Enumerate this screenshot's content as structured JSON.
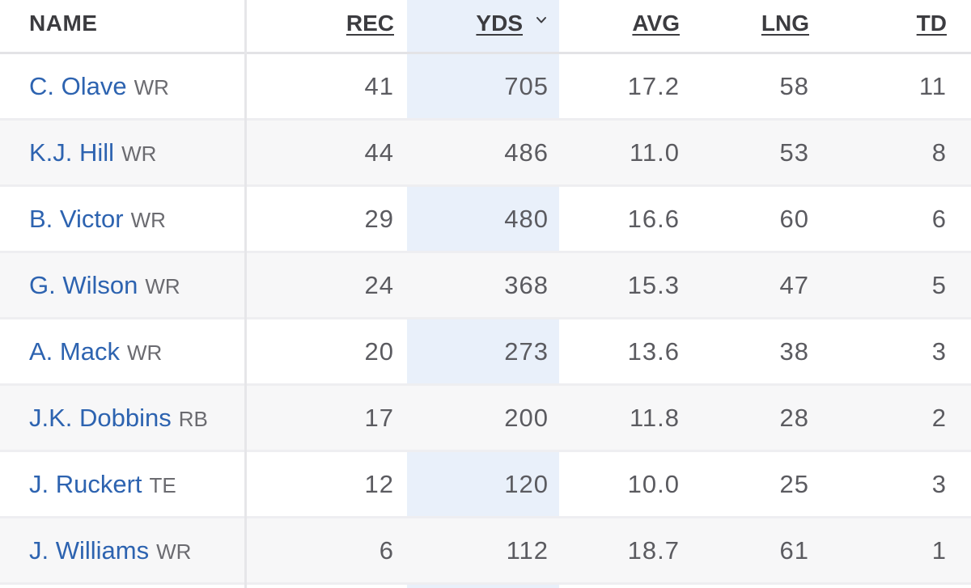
{
  "columns": {
    "name": "NAME",
    "rec": "REC",
    "yds": "YDS",
    "avg": "AVG",
    "lng": "LNG",
    "td": "TD"
  },
  "sort": {
    "column": "YDS",
    "direction": "descending",
    "icon": "chevron-down-icon"
  },
  "colors": {
    "link": "#2d63b0",
    "sorted_column_bg": "#e9f0fa",
    "row_alt_bg": "#f7f7f8"
  },
  "players": [
    {
      "name": "C. Olave",
      "pos": "WR",
      "rec": "41",
      "yds": "705",
      "avg": "17.2",
      "lng": "58",
      "td": "11"
    },
    {
      "name": "K.J. Hill",
      "pos": "WR",
      "rec": "44",
      "yds": "486",
      "avg": "11.0",
      "lng": "53",
      "td": "8"
    },
    {
      "name": "B. Victor",
      "pos": "WR",
      "rec": "29",
      "yds": "480",
      "avg": "16.6",
      "lng": "60",
      "td": "6"
    },
    {
      "name": "G. Wilson",
      "pos": "WR",
      "rec": "24",
      "yds": "368",
      "avg": "15.3",
      "lng": "47",
      "td": "5"
    },
    {
      "name": "A. Mack",
      "pos": "WR",
      "rec": "20",
      "yds": "273",
      "avg": "13.6",
      "lng": "38",
      "td": "3"
    },
    {
      "name": "J.K. Dobbins",
      "pos": "RB",
      "rec": "17",
      "yds": "200",
      "avg": "11.8",
      "lng": "28",
      "td": "2"
    },
    {
      "name": "J. Ruckert",
      "pos": "TE",
      "rec": "12",
      "yds": "120",
      "avg": "10.0",
      "lng": "25",
      "td": "3"
    },
    {
      "name": "J. Williams",
      "pos": "WR",
      "rec": "6",
      "yds": "112",
      "avg": "18.7",
      "lng": "61",
      "td": "1"
    }
  ]
}
